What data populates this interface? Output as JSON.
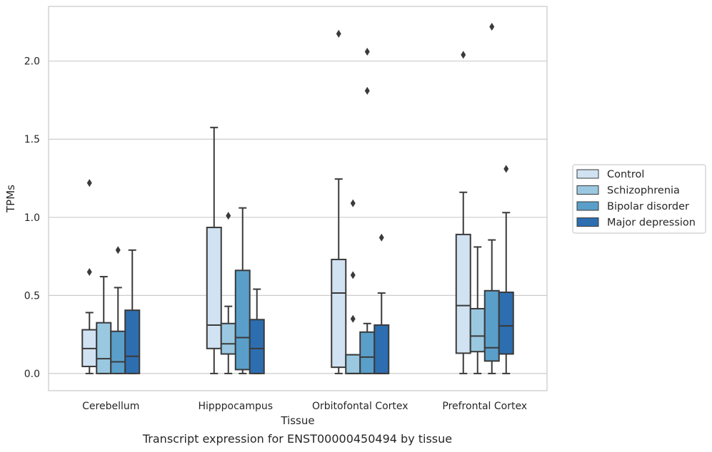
{
  "caption": "Transcript expression for ENST00000450494 by tissue",
  "chart_data": {
    "type": "box",
    "xlabel": "Tissue",
    "ylabel": "TPMs",
    "ylim": [
      -0.11,
      2.35
    ],
    "yticks": [
      0.0,
      0.5,
      1.0,
      1.5,
      2.0
    ],
    "ytick_labels": [
      "0.0",
      "0.5",
      "1.0",
      "1.5",
      "2.0"
    ],
    "grid": "horizontal",
    "legend_position": "right",
    "categories": [
      "Cerebellum",
      "Hipppocampus",
      "Orbitofontal Cortex",
      "Prefrontal Cortex"
    ],
    "series": [
      {
        "name": "Control",
        "color": "#d1e2f2",
        "boxes": [
          {
            "whislo": 0.0,
            "q1": 0.045,
            "med": 0.16,
            "q3": 0.28,
            "whishi": 0.39,
            "fliers": [
              0.65,
              1.22
            ]
          },
          {
            "whislo": 0.0,
            "q1": 0.16,
            "med": 0.31,
            "q3": 0.935,
            "whishi": 1.575,
            "fliers": []
          },
          {
            "whislo": 0.0,
            "q1": 0.04,
            "med": 0.515,
            "q3": 0.73,
            "whishi": 1.245,
            "fliers": [
              2.175
            ]
          },
          {
            "whislo": 0.0,
            "q1": 0.13,
            "med": 0.435,
            "q3": 0.89,
            "whishi": 1.16,
            "fliers": [
              2.04
            ]
          }
        ]
      },
      {
        "name": "Schizophrenia",
        "color": "#9ac8e0",
        "boxes": [
          {
            "whislo": 0.0,
            "q1": 0.0,
            "med": 0.095,
            "q3": 0.325,
            "whishi": 0.62,
            "fliers": []
          },
          {
            "whislo": 0.0,
            "q1": 0.125,
            "med": 0.19,
            "q3": 0.32,
            "whishi": 0.43,
            "fliers": [
              1.01
            ]
          },
          {
            "whislo": 0.0,
            "q1": 0.0,
            "med": 0.0,
            "q3": 0.12,
            "whishi": 0.12,
            "fliers": [
              0.35,
              0.63,
              1.09
            ]
          },
          {
            "whislo": 0.0,
            "q1": 0.14,
            "med": 0.24,
            "q3": 0.415,
            "whishi": 0.81,
            "fliers": []
          }
        ]
      },
      {
        "name": "Bipolar disorder",
        "color": "#5a9fc9",
        "boxes": [
          {
            "whislo": 0.0,
            "q1": 0.0,
            "med": 0.075,
            "q3": 0.27,
            "whishi": 0.55,
            "fliers": [
              0.79
            ]
          },
          {
            "whislo": 0.0,
            "q1": 0.025,
            "med": 0.23,
            "q3": 0.66,
            "whishi": 1.06,
            "fliers": []
          },
          {
            "whislo": 0.0,
            "q1": 0.0,
            "med": 0.105,
            "q3": 0.265,
            "whishi": 0.32,
            "fliers": [
              1.81,
              2.06
            ]
          },
          {
            "whislo": 0.0,
            "q1": 0.08,
            "med": 0.165,
            "q3": 0.53,
            "whishi": 0.855,
            "fliers": [
              2.22
            ]
          }
        ]
      },
      {
        "name": "Major depression",
        "color": "#2d6eb0",
        "boxes": [
          {
            "whislo": 0.0,
            "q1": 0.0,
            "med": 0.11,
            "q3": 0.405,
            "whishi": 0.79,
            "fliers": []
          },
          {
            "whislo": 0.0,
            "q1": 0.0,
            "med": 0.16,
            "q3": 0.345,
            "whishi": 0.54,
            "fliers": []
          },
          {
            "whislo": 0.0,
            "q1": 0.0,
            "med": 0.0,
            "q3": 0.31,
            "whishi": 0.515,
            "fliers": [
              0.87
            ]
          },
          {
            "whislo": 0.0,
            "q1": 0.125,
            "med": 0.305,
            "q3": 0.52,
            "whishi": 1.03,
            "fliers": [
              1.31
            ]
          }
        ]
      }
    ]
  }
}
